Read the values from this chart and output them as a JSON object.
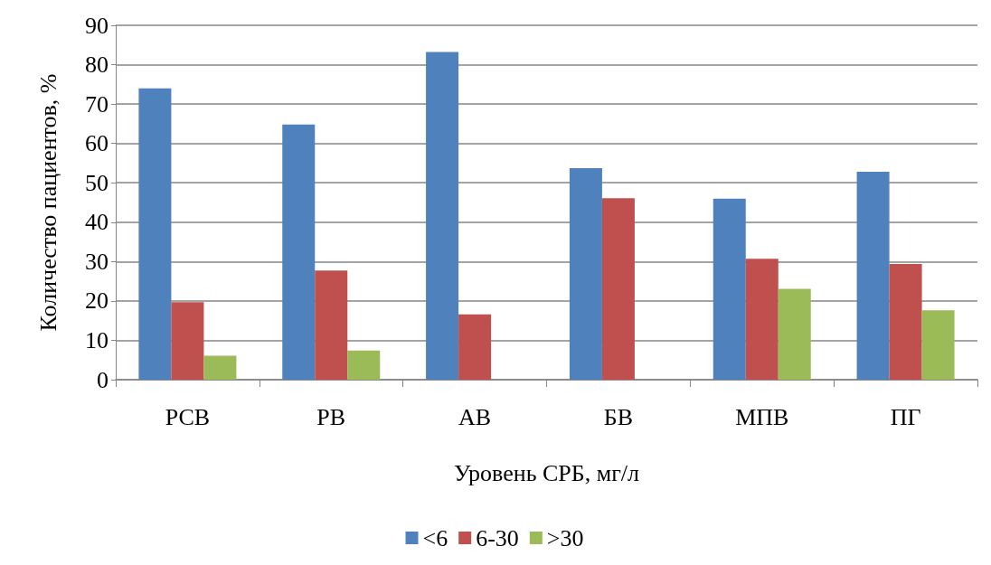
{
  "chart_data": {
    "type": "bar",
    "xlabel": "Уровень СРБ, мг/л",
    "ylabel": "Количество пациентов, %",
    "categories": [
      "РСВ",
      "РВ",
      "АВ",
      "БВ",
      "МПВ",
      "ПГ"
    ],
    "series": [
      {
        "name": "<6",
        "color": "#4f81bd",
        "values": [
          74.0,
          64.8,
          83.2,
          53.7,
          46.0,
          52.8
        ]
      },
      {
        "name": "6-30",
        "color": "#c0504d",
        "values": [
          19.7,
          27.7,
          16.6,
          46.1,
          30.7,
          29.4
        ]
      },
      {
        "name": ">30",
        "color": "#9bbb59",
        "values": [
          6.1,
          7.4,
          0,
          0,
          23.1,
          17.6
        ]
      }
    ],
    "ylim": [
      0,
      90
    ],
    "yticks": [
      0,
      10,
      20,
      30,
      40,
      50,
      60,
      70,
      80,
      90
    ],
    "grid": "y",
    "legend": "bottom"
  }
}
